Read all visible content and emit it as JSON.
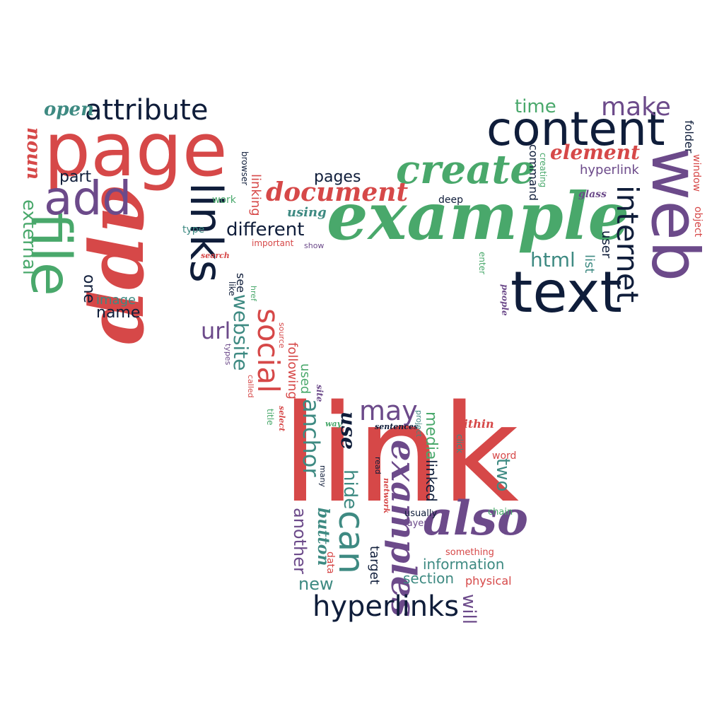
{
  "colors": {
    "red": "#d64848",
    "green": "#49a86b",
    "navy": "#0f1d3a",
    "purple": "#6c4a8a",
    "teal": "#3e8a82"
  },
  "words": [
    "link",
    "example",
    "page",
    "app",
    "links",
    "web",
    "text",
    "content",
    "file",
    "add",
    "create",
    "document",
    "attribute",
    "also",
    "examples",
    "hyperlinks",
    "can",
    "social",
    "internet",
    "anchor",
    "may",
    "make",
    "time",
    "element",
    "noun",
    "open",
    "external",
    "part",
    "one",
    "image",
    "name",
    "url",
    "website",
    "different",
    "pages",
    "using",
    "deep",
    "hyperlink",
    "command",
    "creating",
    "folder",
    "window",
    "object",
    "glass",
    "user",
    "html",
    "list",
    "people",
    "enter",
    "linking",
    "browser",
    "work",
    "type",
    "important",
    "show",
    "search",
    "see",
    "like",
    "href",
    "source",
    "types",
    "called",
    "used",
    "following",
    "site",
    "select",
    "title",
    "way",
    "use",
    "sentences",
    "project",
    "within",
    "media",
    "linked",
    "two",
    "click",
    "word",
    "read",
    "network",
    "many",
    "hide",
    "another",
    "button",
    "usually",
    "layer",
    "chain",
    "something",
    "data",
    "target",
    "information",
    "section",
    "physical",
    "new",
    "will"
  ]
}
